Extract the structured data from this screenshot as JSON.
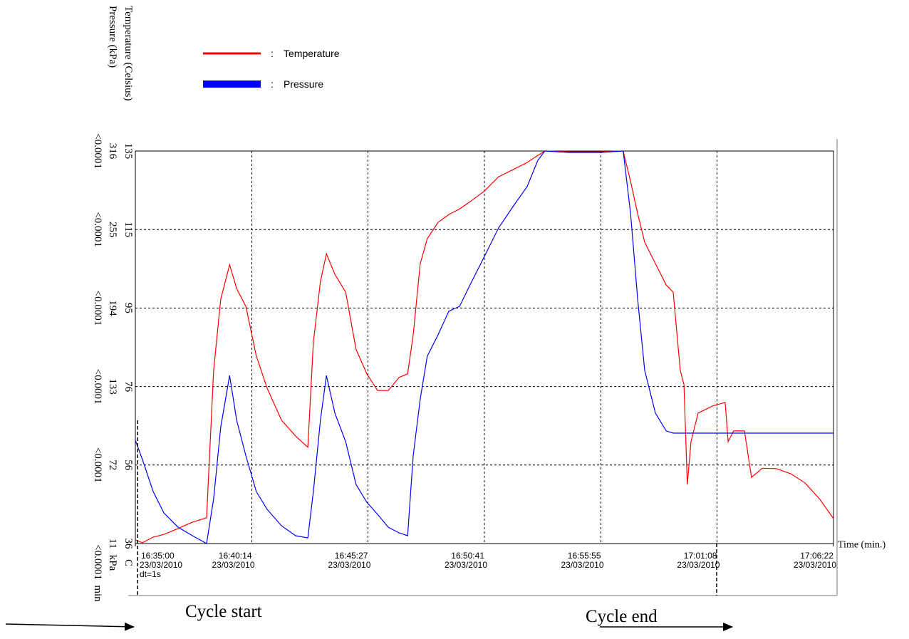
{
  "chart_data": {
    "type": "line",
    "y_label": "Temperature (Celsius)",
    "y2_label": "Pressure (kPa)",
    "x_label": "Time (min.)",
    "y_unit": "C",
    "y2_unit": "kPa",
    "y3_unit": "min",
    "dt_label": "dt=1s",
    "annotations": [
      "Cycle start",
      "Cycle end"
    ],
    "legend_separator": ":",
    "grid": true,
    "xlim": [
      "2010-03-23T16:35:00",
      "2010-03-23T17:06:22"
    ],
    "xticks": [
      {
        "value": "2010-03-23T16:35:00",
        "label": "16:35:00",
        "date": "23/03/2010"
      },
      {
        "value": "2010-03-23T16:40:14",
        "label": "16:40:14",
        "date": "23/03/2010"
      },
      {
        "value": "2010-03-23T16:45:27",
        "label": "16:45:27",
        "date": "23/03/2010"
      },
      {
        "value": "2010-03-23T16:50:41",
        "label": "16:50:41",
        "date": "23/03/2010"
      },
      {
        "value": "2010-03-23T16:55:55",
        "label": "16:55:55",
        "date": "23/03/2010"
      },
      {
        "value": "2010-03-23T17:01:08",
        "label": "17:01:08",
        "date": "23/03/2010"
      },
      {
        "value": "2010-03-23T17:06:22",
        "label": "17:06:22",
        "date": "23/03/2010"
      }
    ],
    "ylim": [
      36,
      135
    ],
    "yticks": [
      36,
      {
        "value": 55.8,
        "label": "56"
      },
      {
        "value": 75.6,
        "label": "76"
      },
      {
        "value": 95.4,
        "label": "95"
      },
      {
        "value": 115.2,
        "label": "115"
      },
      135
    ],
    "y2lim": [
      11,
      316
    ],
    "y2ticks": [
      11,
      72,
      133,
      194,
      255,
      316
    ],
    "y3ticks": [
      "<0.0001",
      "<0.0001",
      "<0.0001",
      "<0.0001",
      "<0.0001",
      "<0.0001"
    ],
    "x": [
      "2010-03-23T16:35:00",
      "2010-03-23T16:35:19",
      "2010-03-23T16:35:48",
      "2010-03-23T16:36:17",
      "2010-03-23T16:36:55",
      "2010-03-23T16:37:34",
      "2010-03-23T16:38:12",
      "2010-03-23T16:38:31",
      "2010-03-23T16:38:50",
      "2010-03-23T16:39:14",
      "2010-03-23T16:39:33",
      "2010-03-23T16:39:58",
      "2010-03-23T16:40:26",
      "2010-03-23T16:40:55",
      "2010-03-23T16:41:34",
      "2010-03-23T16:42:12",
      "2010-03-23T16:42:45",
      "2010-03-23T16:43:00",
      "2010-03-23T16:43:19",
      "2010-03-23T16:43:35",
      "2010-03-23T16:43:58",
      "2010-03-23T16:44:27",
      "2010-03-23T16:44:55",
      "2010-03-23T16:45:24",
      "2010-03-23T16:45:53",
      "2010-03-23T16:46:22",
      "2010-03-23T16:46:51",
      "2010-03-23T16:47:14",
      "2010-03-23T16:47:29",
      "2010-03-23T16:47:48",
      "2010-03-23T16:48:07",
      "2010-03-23T16:48:36",
      "2010-03-23T16:49:05",
      "2010-03-23T16:49:34",
      "2010-03-23T16:50:02",
      "2010-03-23T16:50:41",
      "2010-03-23T16:51:19",
      "2010-03-23T16:51:58",
      "2010-03-23T16:52:36",
      "2010-03-23T16:53:05",
      "2010-03-23T16:53:24",
      "2010-03-23T16:54:31",
      "2010-03-23T16:55:54",
      "2010-03-23T16:56:55",
      "2010-03-23T16:57:15",
      "2010-03-23T16:57:34",
      "2010-03-23T16:57:53",
      "2010-03-23T16:58:22",
      "2010-03-23T16:58:51",
      "2010-03-23T16:59:10",
      "2010-03-23T16:59:29",
      "2010-03-23T16:59:39",
      "2010-03-23T16:59:48",
      "2010-03-23T16:59:58",
      "2010-03-23T17:00:17",
      "2010-03-23T17:00:56",
      "2010-03-23T17:01:30",
      "2010-03-23T17:01:38",
      "2010-03-23T17:01:53",
      "2010-03-23T17:02:22",
      "2010-03-23T17:02:41",
      "2010-03-23T17:03:10",
      "2010-03-23T17:03:48",
      "2010-03-23T17:04:27",
      "2010-03-23T17:05:05",
      "2010-03-23T17:05:44",
      "2010-03-23T17:06:22"
    ],
    "series": [
      {
        "name": "Temperature",
        "color": "#ff0000",
        "axis": "y",
        "values": [
          36.9,
          36.2,
          37.6,
          38.3,
          39.8,
          41.4,
          42.5,
          79.7,
          97.6,
          106.3,
          100.3,
          95.8,
          83.3,
          75.2,
          67.1,
          63.1,
          60.3,
          86.8,
          102.1,
          109.1,
          103.9,
          99.4,
          85.0,
          78.8,
          74.6,
          74.6,
          77.9,
          78.8,
          88.6,
          106.6,
          112.9,
          117.0,
          119.0,
          120.4,
          122.2,
          124.9,
          128.5,
          130.3,
          132.1,
          133.9,
          135.0,
          134.8,
          134.8,
          135.0,
          127.3,
          119.2,
          112.0,
          106.6,
          101.2,
          99.4,
          79.7,
          76.1,
          50.9,
          61.7,
          68.9,
          70.7,
          71.6,
          61.7,
          64.4,
          64.4,
          52.7,
          55.0,
          54.9,
          53.6,
          51.3,
          47.3,
          42.3
        ]
      },
      {
        "name": "Pressure",
        "color": "#0000ff",
        "axis": "y2",
        "values": [
          91.3,
          76.3,
          51.4,
          34.8,
          23.7,
          17.1,
          11,
          45.9,
          101.2,
          141.6,
          106.8,
          79.1,
          51.4,
          37.6,
          24.8,
          17.1,
          15.4,
          51.4,
          106.8,
          141.6,
          112.3,
          90.2,
          56.9,
          43.1,
          33.7,
          23.7,
          19.3,
          17.1,
          79.1,
          123.4,
          156.6,
          173.2,
          191.5,
          195.3,
          211.9,
          234.1,
          256.2,
          272.8,
          288.3,
          308.8,
          316,
          314.9,
          314.9,
          316,
          267.3,
          200.9,
          145.5,
          112.3,
          98.5,
          96.8,
          96.8,
          96.8,
          96.8,
          96.8,
          96.8,
          96.8,
          96.8,
          96.8,
          96.8,
          96.8,
          96.8,
          96.8,
          96.8,
          96.8,
          96.8,
          96.8,
          96.8
        ]
      }
    ]
  }
}
